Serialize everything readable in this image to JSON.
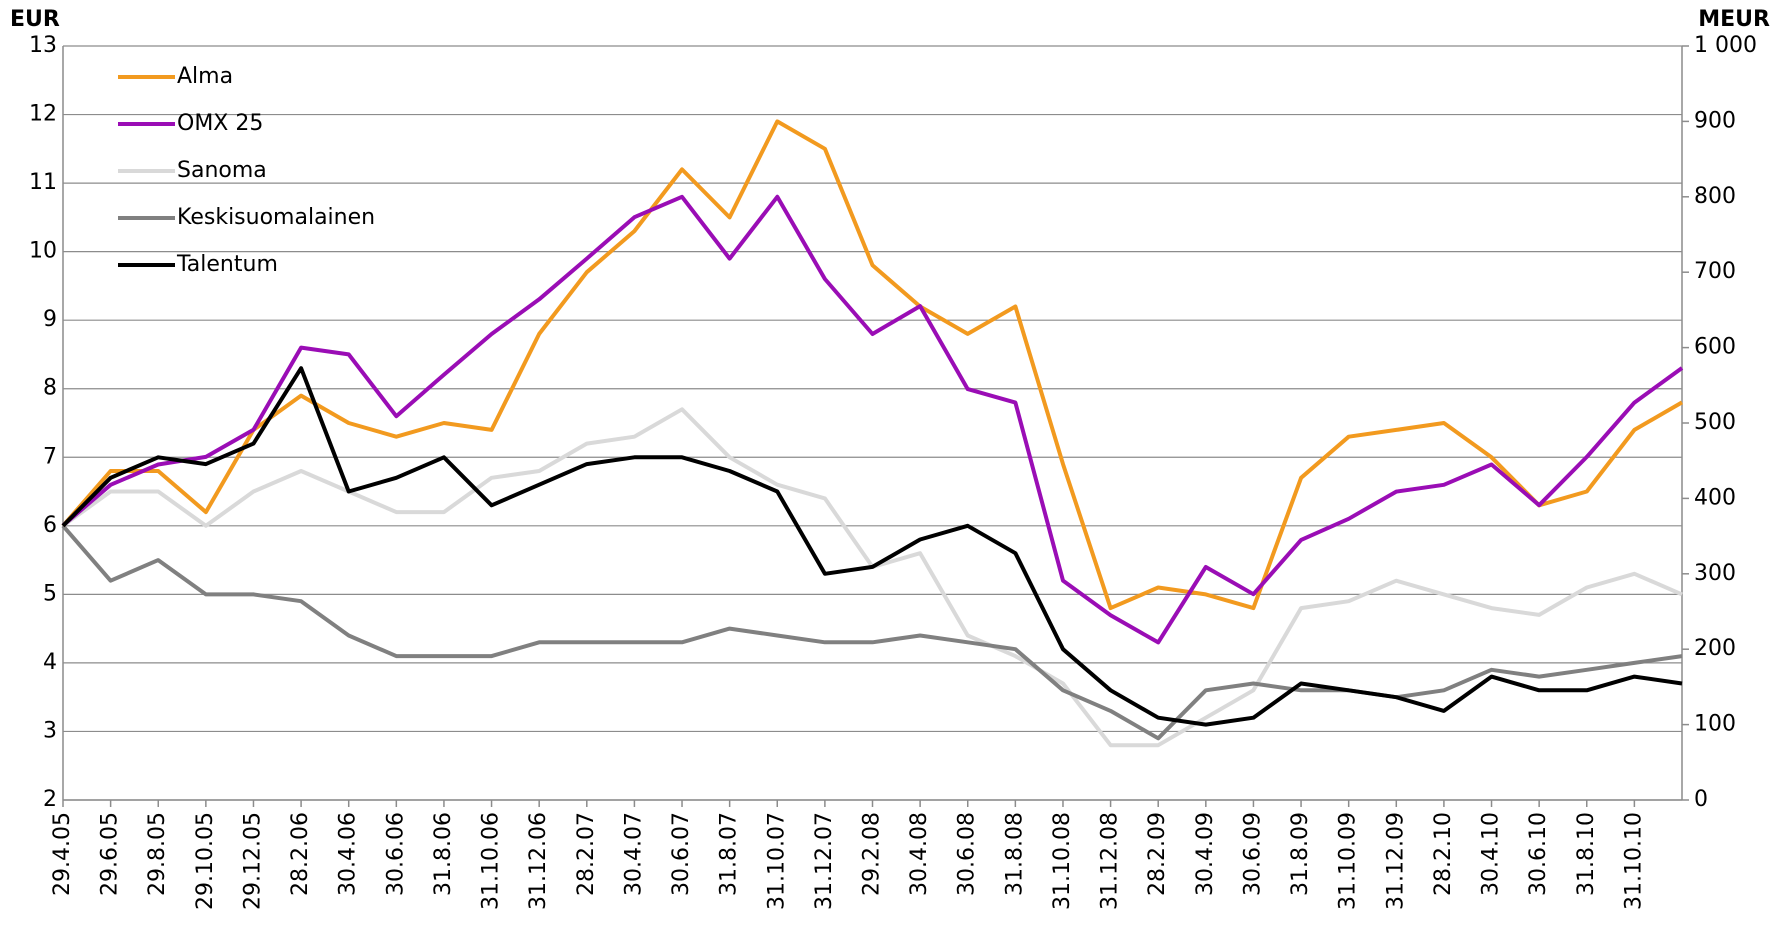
{
  "chart_data": {
    "type": "line",
    "y_label": "EUR",
    "y2_label": "MEUR",
    "categories": [
      "29.4.05",
      "29.6.05",
      "29.8.05",
      "29.10.05",
      "29.12.05",
      "28.2.06",
      "30.4.06",
      "30.6.06",
      "31.8.06",
      "31.10.06",
      "31.12.06",
      "28.2.07",
      "30.4.07",
      "30.6.07",
      "31.8.07",
      "31.10.07",
      "31.12.07",
      "29.2.08",
      "30.4.08",
      "30.6.08",
      "31.8.08",
      "31.10.08",
      "31.12.08",
      "28.2.09",
      "30.4.09",
      "30.6.09",
      "31.8.09",
      "31.10.09",
      "31.12.09",
      "28.2.10",
      "30.4.10",
      "30.6.10",
      "31.8.10",
      "31.10.10",
      null
    ],
    "series": [
      {
        "name": "Alma",
        "color": "#f29a1f",
        "values": [
          6.0,
          6.8,
          6.8,
          6.2,
          7.4,
          7.9,
          7.5,
          7.3,
          7.5,
          7.4,
          8.8,
          9.7,
          10.3,
          11.2,
          10.5,
          11.9,
          11.5,
          9.8,
          9.2,
          8.8,
          9.2,
          6.9,
          4.8,
          5.1,
          5.0,
          4.8,
          6.7,
          7.3,
          7.4,
          7.5,
          7.0,
          6.3,
          6.5,
          7.4,
          7.8
        ]
      },
      {
        "name": "OMX 25",
        "color": "#9a0db5",
        "axis": "y2",
        "values": [
          364,
          418,
          445,
          455,
          491,
          600,
          591,
          509,
          564,
          618,
          664,
          718,
          773,
          800,
          718,
          800,
          691,
          618,
          655,
          545,
          527,
          291,
          245,
          209,
          309,
          273,
          345,
          373,
          409,
          418,
          445,
          391,
          455,
          527,
          573
        ]
      },
      {
        "name": "Sanoma",
        "color": "#d9d9d9",
        "values": [
          6.0,
          6.5,
          6.5,
          6.0,
          6.5,
          6.8,
          6.5,
          6.2,
          6.2,
          6.7,
          6.8,
          7.2,
          7.3,
          7.7,
          7.0,
          6.6,
          6.4,
          5.4,
          5.6,
          4.4,
          4.1,
          3.7,
          2.8,
          2.8,
          3.2,
          3.6,
          4.8,
          4.9,
          5.2,
          5.0,
          4.8,
          4.7,
          5.1,
          5.3,
          5.0
        ]
      },
      {
        "name": "Keskisuomalainen",
        "color": "#808080",
        "values": [
          6.0,
          5.2,
          5.5,
          5.0,
          5.0,
          4.9,
          4.4,
          4.1,
          4.1,
          4.1,
          4.3,
          4.3,
          4.3,
          4.3,
          4.5,
          4.4,
          4.3,
          4.3,
          4.4,
          4.3,
          4.2,
          3.6,
          3.3,
          2.9,
          3.6,
          3.7,
          3.6,
          3.6,
          3.5,
          3.6,
          3.9,
          3.8,
          3.9,
          4.0,
          4.1
        ]
      },
      {
        "name": "Talentum",
        "color": "#000000",
        "values": [
          6.0,
          6.7,
          7.0,
          6.9,
          7.2,
          8.3,
          6.5,
          6.7,
          7.0,
          6.3,
          6.6,
          6.9,
          7.0,
          7.0,
          6.8,
          6.5,
          5.3,
          5.4,
          5.8,
          6.0,
          5.6,
          4.2,
          3.6,
          3.2,
          3.1,
          3.2,
          3.7,
          3.6,
          3.5,
          3.3,
          3.8,
          3.6,
          3.6,
          3.8,
          3.7
        ]
      }
    ],
    "ylim": [
      2,
      13
    ],
    "yticks": [
      2,
      3,
      4,
      5,
      6,
      7,
      8,
      9,
      10,
      11,
      12,
      13
    ],
    "y2lim": [
      0,
      1000
    ],
    "y2ticks": [
      0,
      100,
      200,
      300,
      400,
      500,
      600,
      700,
      800,
      900,
      {
        "value": 1000,
        "label": "1 000"
      }
    ],
    "grid": true,
    "legend": "top-left"
  }
}
